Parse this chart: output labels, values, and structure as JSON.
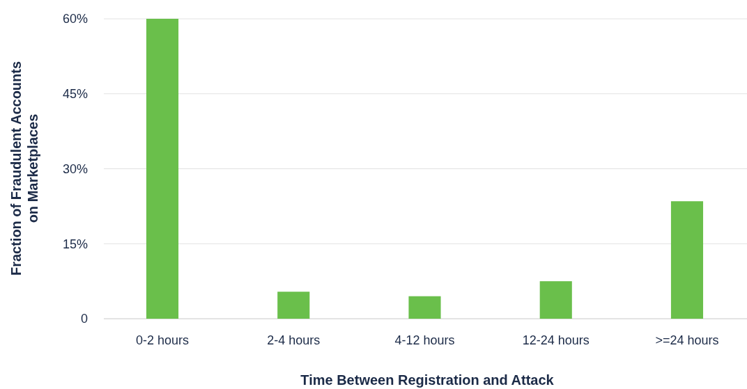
{
  "chart_data": {
    "type": "bar",
    "xlabel": "Time Between Registration and Attack",
    "ylabel": "Fraction of Fraudulent Accounts on Marketplaces",
    "categories": [
      "0-2 hours",
      "2-4 hours",
      "4-12 hours",
      "12-24 hours",
      ">=24 hours"
    ],
    "values": [
      60,
      5.4,
      4.5,
      7.5,
      23.5
    ],
    "color": "#6abf4b",
    "ylim": [
      0,
      60
    ],
    "yticks": [
      {
        "value": 0,
        "label": "0"
      },
      {
        "value": 15,
        "label": "15%"
      },
      {
        "value": 30,
        "label": "30%"
      },
      {
        "value": 45,
        "label": "45%"
      },
      {
        "value": 60,
        "label": "60%"
      }
    ],
    "grid": "y"
  }
}
